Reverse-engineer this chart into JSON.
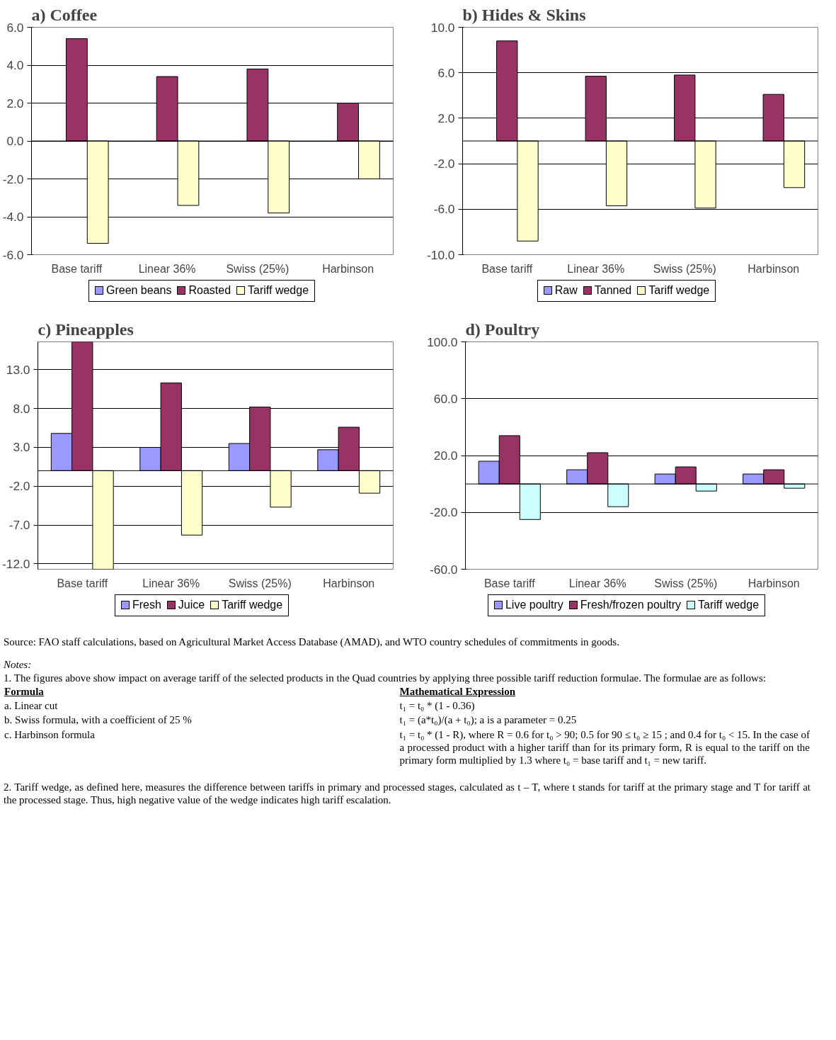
{
  "chart_data": [
    {
      "type": "bar",
      "title": "a) Coffee",
      "categories": [
        "Base tariff",
        "Linear 36%",
        "Swiss (25%)",
        "Harbinson"
      ],
      "series": [
        {
          "name": "Green beans",
          "color": "#9999ff",
          "values": [
            null,
            null,
            null,
            null
          ]
        },
        {
          "name": "Roasted",
          "color": "#993366",
          "values": [
            5.4,
            3.4,
            3.8,
            2.0
          ]
        },
        {
          "name": "Tariff wedge",
          "color": "#ffffcc",
          "values": [
            -5.4,
            -3.4,
            -3.8,
            -2.0
          ]
        }
      ],
      "ylim": [
        -6,
        6
      ],
      "yticks": [
        {
          "value": 6,
          "label": "6.0"
        },
        {
          "value": 4,
          "label": "4.0"
        },
        {
          "value": 2,
          "label": "2.0"
        },
        {
          "value": 0,
          "label": "0.0"
        },
        {
          "value": -2,
          "label": "-2.0"
        },
        {
          "value": -4,
          "label": "-4.0"
        },
        {
          "value": -6,
          "label": "-6.0"
        }
      ],
      "grid": "y",
      "legend": "bottom"
    },
    {
      "type": "bar",
      "title": "b) Hides & Skins",
      "categories": [
        "Base tariff",
        "Linear 36%",
        "Swiss (25%)",
        "Harbinson"
      ],
      "series": [
        {
          "name": "Raw",
          "color": "#9999ff",
          "values": [
            null,
            null,
            null,
            null
          ]
        },
        {
          "name": "Tanned",
          "color": "#993366",
          "values": [
            8.8,
            5.7,
            5.8,
            4.1
          ]
        },
        {
          "name": "Tariff wedge",
          "color": "#ffffcc",
          "values": [
            -8.8,
            -5.7,
            -5.9,
            -4.1
          ]
        }
      ],
      "ylim": [
        -10,
        10
      ],
      "yticks": [
        {
          "value": 10,
          "label": "10.0"
        },
        {
          "value": 6,
          "label": "6.0"
        },
        {
          "value": 2,
          "label": "2.0"
        },
        {
          "value": -2,
          "label": "-2.0"
        },
        {
          "value": -6,
          "label": "-6.0"
        },
        {
          "value": -10,
          "label": "-10.0"
        }
      ],
      "grid": "y",
      "legend": "bottom"
    },
    {
      "type": "bar",
      "title": "c) Pineapples",
      "categories": [
        "Base tariff",
        "Linear 36%",
        "Swiss (25%)",
        "Harbinson"
      ],
      "series": [
        {
          "name": "Fresh",
          "color": "#9999ff",
          "values": [
            4.8,
            3.0,
            3.5,
            2.7
          ]
        },
        {
          "name": "Juice",
          "color": "#993366",
          "values": [
            16.6,
            11.3,
            8.2,
            5.6
          ]
        },
        {
          "name": "Tariff wedge",
          "color": "#ffffcc",
          "values": [
            -12.7,
            -8.3,
            -4.7,
            -2.9
          ]
        }
      ],
      "ylim": [
        -12.7,
        16.6
      ],
      "yticks": [
        {
          "value": 13,
          "label": "13.0"
        },
        {
          "value": 8,
          "label": "8.0"
        },
        {
          "value": 3,
          "label": "3.0"
        },
        {
          "value": -2,
          "label": "-2.0"
        },
        {
          "value": -7,
          "label": "-7.0"
        },
        {
          "value": -12,
          "label": "-12.0"
        }
      ],
      "grid": "y",
      "legend": "bottom"
    },
    {
      "type": "bar",
      "title": "d) Poultry",
      "categories": [
        "Base tariff",
        "Linear 36%",
        "Swiss (25%)",
        "Harbinson"
      ],
      "series": [
        {
          "name": "Live poultry",
          "color": "#9999ff",
          "values": [
            16,
            10,
            7,
            7
          ]
        },
        {
          "name": "Fresh/frozen poultry",
          "color": "#993366",
          "values": [
            34,
            22,
            12,
            10
          ]
        },
        {
          "name": "Tariff wedge",
          "color": "#ccffff",
          "values": [
            -25,
            -16,
            -5,
            -3
          ]
        }
      ],
      "ylim": [
        -60,
        100
      ],
      "yticks": [
        {
          "value": 100,
          "label": "100.0"
        },
        {
          "value": 60,
          "label": "60.0"
        },
        {
          "value": 20,
          "label": "20.0"
        },
        {
          "value": -20,
          "label": "-20.0"
        },
        {
          "value": -60,
          "label": "-60.0"
        }
      ],
      "grid": "y",
      "legend": "bottom",
      "annotations": [
        "Source: FAO staff calculations, based on Agricultural Market Access Database (AMAD), and WTO country schedules of commitments in goods.",
        "Notes:",
        "1. The figures above show impact on average tariff of the selected products in the Quad countries by applying three possible tariff reduction formulae. The formulae are as follows:",
        "Formula",
        "Mathematical Expression",
        "a. Linear cut",
        "t₁ = t₀ * (1 - 0.36)",
        "b. Swiss formula, with a coefficient of 25 %",
        "t₁ = (a*t₀)/(a + t₀); a is a parameter = 0.25",
        "c. Harbinson  formula",
        "t₁ = t₀ * (1 - R), where R = 0.6 for t₀ > 90; 0.5 for 90 ≤ t₀ ≥ 15 ; and 0.4 for t₀ < 15. In the case of a processed product with a higher tariff than for its  primary form, R  is equal to the tariff on the primary form multiplied by 1.3 where t₀ = base tariff and t₁ = new tariff.",
        "2. Tariff wedge, as defined here, measures the difference between tariffs in primary and processed stages, calculated as t – T, where t stands for tariff at the primary stage and T for tariff at the processed stage. Thus, high negative value of the wedge indicates high tariff escalation."
      ]
    }
  ]
}
